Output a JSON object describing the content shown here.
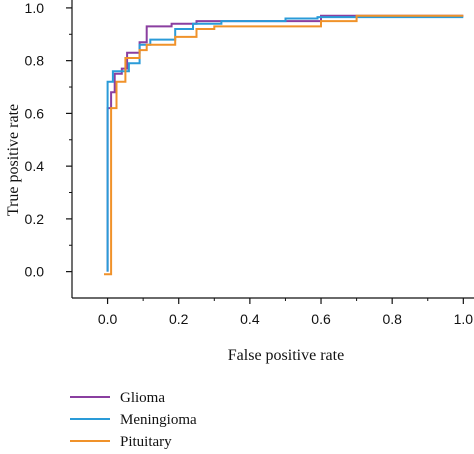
{
  "chart_data": {
    "type": "line",
    "title": "",
    "xlabel": "False positive rate",
    "ylabel": "True positive rate",
    "xlim": [
      -0.1,
      1.03
    ],
    "ylim": [
      -0.1,
      1.03
    ],
    "xticks": [
      0.0,
      0.2,
      0.4,
      0.6,
      0.8,
      1.0
    ],
    "xtick_labels": [
      "0.0",
      "0.2",
      "0.4",
      "0.6",
      "0.8",
      "1.0"
    ],
    "yticks": [
      0.0,
      0.2,
      0.4,
      0.6,
      0.8,
      1.0
    ],
    "ytick_labels": [
      "0.0",
      "0.2",
      "0.4",
      "0.6",
      "0.8",
      "1.0"
    ],
    "grid": false,
    "legend_position": "bottom-left",
    "series": [
      {
        "name": "Glioma",
        "color": "#8a3fa0",
        "points": [
          [
            0.0,
            0.0
          ],
          [
            0.0,
            0.62
          ],
          [
            0.01,
            0.62
          ],
          [
            0.01,
            0.68
          ],
          [
            0.02,
            0.68
          ],
          [
            0.02,
            0.75
          ],
          [
            0.04,
            0.75
          ],
          [
            0.04,
            0.77
          ],
          [
            0.055,
            0.77
          ],
          [
            0.055,
            0.83
          ],
          [
            0.09,
            0.83
          ],
          [
            0.09,
            0.87
          ],
          [
            0.11,
            0.87
          ],
          [
            0.11,
            0.93
          ],
          [
            0.18,
            0.93
          ],
          [
            0.18,
            0.94
          ],
          [
            0.25,
            0.94
          ],
          [
            0.25,
            0.95
          ],
          [
            0.6,
            0.95
          ],
          [
            0.6,
            0.97
          ],
          [
            0.7,
            0.97
          ],
          [
            1.0,
            0.97
          ]
        ]
      },
      {
        "name": "Meningioma",
        "color": "#2a9bd8",
        "points": [
          [
            0.0,
            0.0
          ],
          [
            0.0,
            0.72
          ],
          [
            0.015,
            0.72
          ],
          [
            0.015,
            0.76
          ],
          [
            0.06,
            0.76
          ],
          [
            0.06,
            0.79
          ],
          [
            0.09,
            0.79
          ],
          [
            0.09,
            0.86
          ],
          [
            0.12,
            0.86
          ],
          [
            0.12,
            0.88
          ],
          [
            0.19,
            0.88
          ],
          [
            0.19,
            0.92
          ],
          [
            0.24,
            0.92
          ],
          [
            0.24,
            0.94
          ],
          [
            0.32,
            0.94
          ],
          [
            0.32,
            0.95
          ],
          [
            0.5,
            0.95
          ],
          [
            0.5,
            0.96
          ],
          [
            0.59,
            0.96
          ],
          [
            0.59,
            0.965
          ],
          [
            1.0,
            0.965
          ]
        ]
      },
      {
        "name": "Pituitary",
        "color": "#f0922a",
        "points": [
          [
            -0.01,
            -0.01
          ],
          [
            0.01,
            -0.01
          ],
          [
            0.01,
            0.62
          ],
          [
            0.025,
            0.62
          ],
          [
            0.025,
            0.72
          ],
          [
            0.05,
            0.72
          ],
          [
            0.05,
            0.81
          ],
          [
            0.09,
            0.81
          ],
          [
            0.09,
            0.84
          ],
          [
            0.11,
            0.84
          ],
          [
            0.11,
            0.86
          ],
          [
            0.19,
            0.86
          ],
          [
            0.19,
            0.89
          ],
          [
            0.25,
            0.89
          ],
          [
            0.25,
            0.92
          ],
          [
            0.3,
            0.92
          ],
          [
            0.3,
            0.93
          ],
          [
            0.6,
            0.93
          ],
          [
            0.6,
            0.95
          ],
          [
            0.7,
            0.95
          ],
          [
            0.7,
            0.97
          ],
          [
            1.0,
            0.97
          ]
        ]
      }
    ]
  }
}
